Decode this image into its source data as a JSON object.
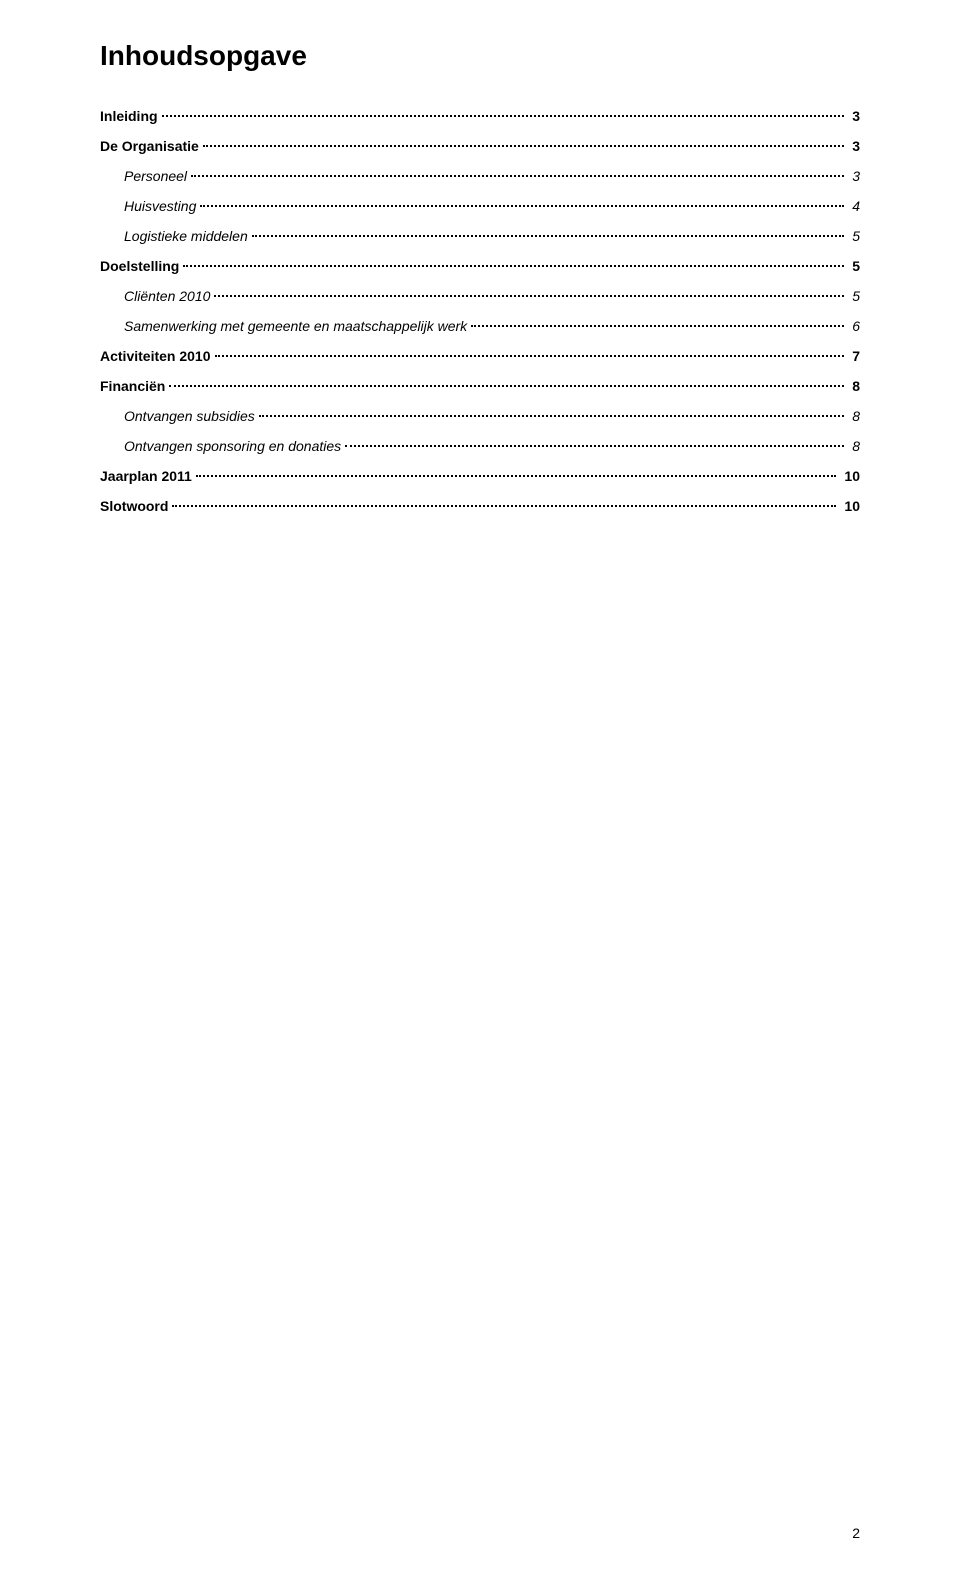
{
  "title": "Inhoudsopgave",
  "entries": [
    {
      "label": "Inleiding",
      "page": "3",
      "bold": true,
      "italic": false,
      "indent": false,
      "section_gap": false
    },
    {
      "label": "De Organisatie",
      "page": "3",
      "bold": true,
      "italic": false,
      "indent": false,
      "section_gap": true
    },
    {
      "label": "Personeel",
      "page": "3",
      "bold": false,
      "italic": true,
      "indent": true,
      "section_gap": false
    },
    {
      "label": "Huisvesting",
      "page": "4",
      "bold": false,
      "italic": true,
      "indent": true,
      "section_gap": false
    },
    {
      "label": "Logistieke middelen",
      "page": "5",
      "bold": false,
      "italic": true,
      "indent": true,
      "section_gap": false
    },
    {
      "label": "Doelstelling",
      "page": "5",
      "bold": true,
      "italic": false,
      "indent": false,
      "section_gap": true
    },
    {
      "label": "Cliënten 2010",
      "page": "5",
      "bold": false,
      "italic": true,
      "indent": true,
      "section_gap": false
    },
    {
      "label": "Samenwerking met gemeente en maatschappelijk werk",
      "page": "6",
      "bold": false,
      "italic": true,
      "indent": true,
      "section_gap": false
    },
    {
      "label": "Activiteiten 2010",
      "page": "7",
      "bold": true,
      "italic": false,
      "indent": false,
      "section_gap": true
    },
    {
      "label": "Financiën",
      "page": "8",
      "bold": true,
      "italic": false,
      "indent": false,
      "section_gap": true
    },
    {
      "label": "Ontvangen subsidies",
      "page": "8",
      "bold": false,
      "italic": true,
      "indent": true,
      "section_gap": false
    },
    {
      "label": "Ontvangen sponsoring en donaties",
      "page": "8",
      "bold": false,
      "italic": true,
      "indent": true,
      "section_gap": false
    },
    {
      "label": "Jaarplan 2011",
      "page": "10",
      "bold": true,
      "italic": false,
      "indent": false,
      "section_gap": true
    },
    {
      "label": "Slotwoord",
      "page": "10",
      "bold": true,
      "italic": false,
      "indent": false,
      "section_gap": true
    }
  ],
  "page_number": "2"
}
